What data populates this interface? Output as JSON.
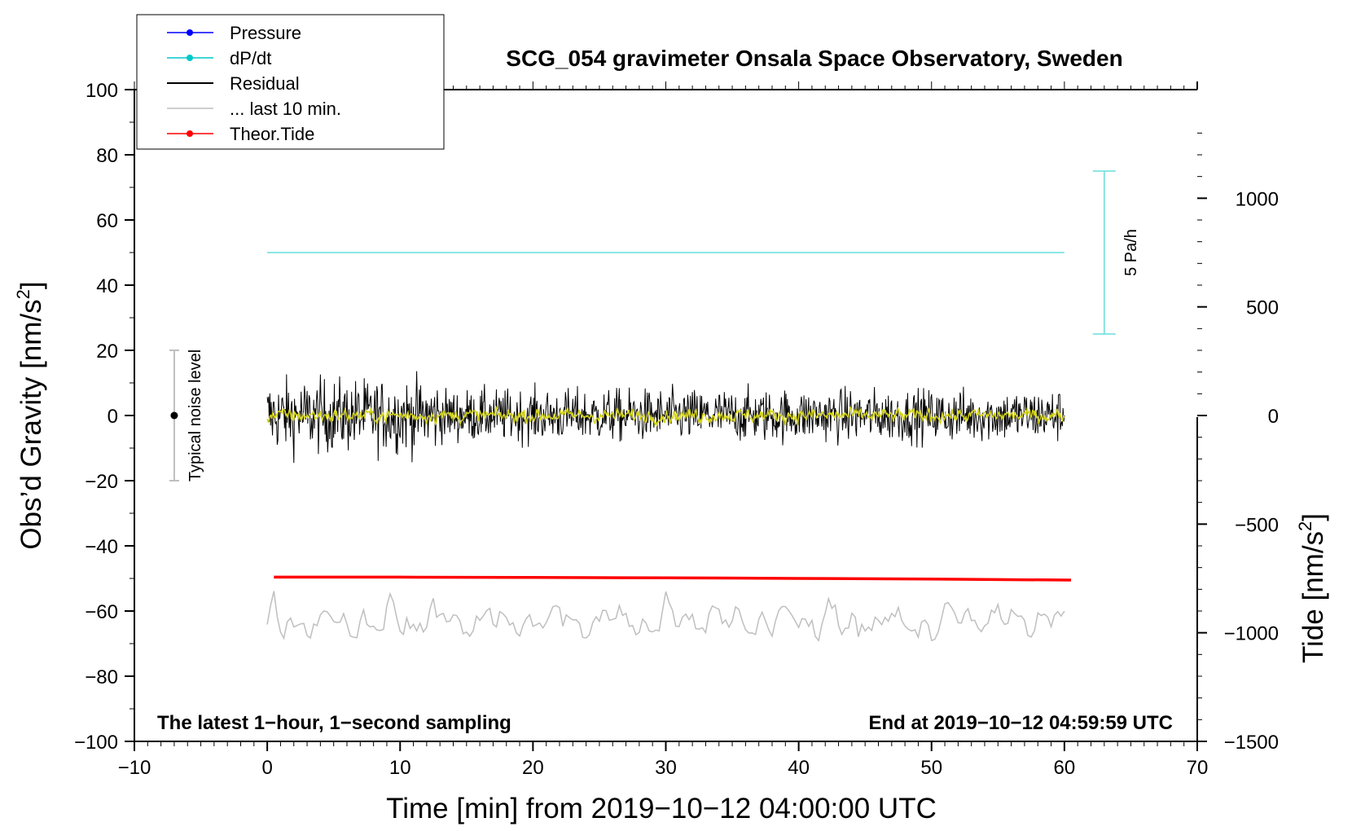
{
  "chart_data": {
    "type": "line",
    "title": "SCG_054 gravimeter Onsala Space Observatory, Sweden",
    "xlabel": "Time [min] from 2019−10−12 04:00:00 UTC",
    "ylabel_main": "Obs’d Gravity [nm/s",
    "ylabel_right": "Tide [nm/s",
    "ylabel_sup": "2",
    "ylabel_close": "]",
    "xlim": [
      -10,
      70
    ],
    "ylim": [
      -100,
      100
    ],
    "ylim_right": [
      -1500,
      1500
    ],
    "right_axis_visible_from": -1500,
    "right_axis_visible_to": 1300,
    "x_ticks": [
      "−10",
      "0",
      "10",
      "20",
      "30",
      "40",
      "50",
      "60",
      "70"
    ],
    "x_tick_values": [
      -10,
      0,
      10,
      20,
      30,
      40,
      50,
      60,
      70
    ],
    "y_ticks": [
      "100",
      "80",
      "60",
      "40",
      "20",
      "0",
      "−20",
      "−40",
      "−60",
      "−80",
      "−100"
    ],
    "y_tick_values": [
      100,
      80,
      60,
      40,
      20,
      0,
      -20,
      -40,
      -60,
      -80,
      -100
    ],
    "y_right_ticks": [
      "1000",
      "500",
      "0",
      "−500",
      "−1000",
      "−1500"
    ],
    "y_right_tick_values": [
      1000,
      500,
      0,
      -500,
      -1000,
      -1500
    ],
    "legend": [
      {
        "label": "Pressure",
        "color": "#0000ff",
        "marker": true
      },
      {
        "label": "dP/dt",
        "color": "#00c8c8",
        "marker": true
      },
      {
        "label": "Residual",
        "color": "#000000",
        "marker": false
      },
      {
        "label": "... last 10 min.",
        "color": "#bfbfbf",
        "marker": false
      },
      {
        "label": "Theor.Tide",
        "color": "#ff0000",
        "marker": true
      }
    ],
    "series": {
      "dpdt": {
        "x": [
          0,
          60
        ],
        "y": [
          50,
          50
        ],
        "color": "#66dddd"
      },
      "residual": {
        "x_start": 0,
        "x_end": 60,
        "center": 0,
        "amplitude": 5,
        "color": "#000000"
      },
      "residual_smooth": {
        "x_start": 0,
        "x_end": 60,
        "center": 0,
        "amplitude": 1.5,
        "color": "#d4d41a"
      },
      "last10": {
        "x_start": 0,
        "x_end": 60,
        "center": -63,
        "amplitude": 3.5,
        "color": "#bfbfbf"
      },
      "tide": {
        "x": [
          0.5,
          10,
          20,
          30,
          40,
          50,
          60.5
        ],
        "y": [
          -49.6,
          -49.6,
          -49.7,
          -49.8,
          -50.0,
          -50.2,
          -50.5
        ],
        "color": "#ff0000"
      }
    },
    "annotations": {
      "noise_label": "Typical noise level",
      "noise_bar": {
        "x": -7,
        "y_low": -20,
        "y_high": 20,
        "center": 0
      },
      "dpdt_scale_label": "5 Pa/h",
      "dpdt_scale_bar": {
        "x": 63,
        "y_low": 25,
        "y_high": 75
      },
      "bottom_left": "The latest 1−hour, 1−second sampling",
      "bottom_right": "End at 2019−10−12 04:59:59 UTC"
    }
  }
}
